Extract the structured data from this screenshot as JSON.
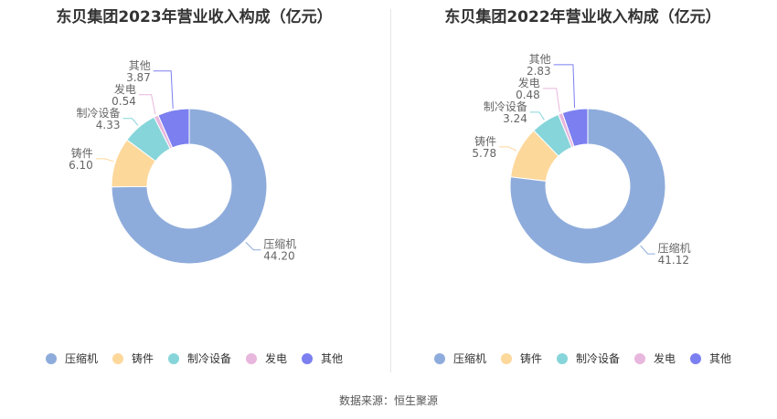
{
  "charts": [
    {
      "title": "东贝集团2023年营业收入构成（亿元）",
      "chart_data": {
        "type": "pie",
        "categories": [
          "压缩机",
          "铸件",
          "制冷设备",
          "发电",
          "其他"
        ],
        "values": [
          44.2,
          6.1,
          4.33,
          0.54,
          3.87
        ],
        "value_labels": [
          "44.20",
          "6.10",
          "4.33",
          "0.54",
          "3.87"
        ],
        "colors": [
          "#8eacdb",
          "#fdd89b",
          "#86d5da",
          "#e8b7dd",
          "#7b7ff0"
        ],
        "donut": true,
        "legend_position": "bottom"
      }
    },
    {
      "title": "东贝集团2022年营业收入构成（亿元）",
      "chart_data": {
        "type": "pie",
        "categories": [
          "压缩机",
          "铸件",
          "制冷设备",
          "发电",
          "其他"
        ],
        "values": [
          41.12,
          5.78,
          3.24,
          0.48,
          2.83
        ],
        "value_labels": [
          "41.12",
          "5.78",
          "3.24",
          "0.48",
          "2.83"
        ],
        "colors": [
          "#8eacdb",
          "#fdd89b",
          "#86d5da",
          "#e8b7dd",
          "#7b7ff0"
        ],
        "donut": true,
        "legend_position": "bottom"
      }
    }
  ],
  "source": "数据来源：恒生聚源"
}
